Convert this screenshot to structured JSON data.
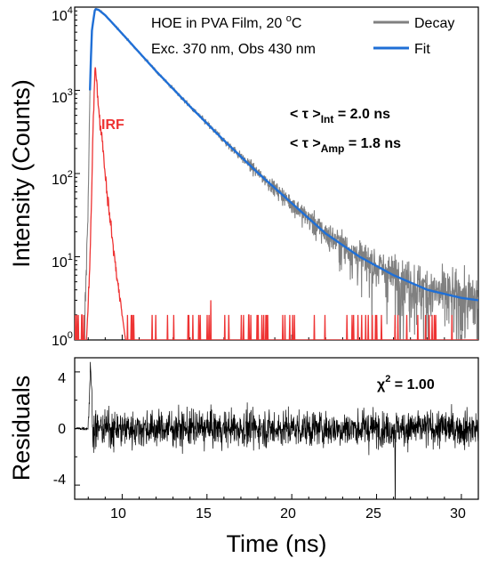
{
  "chart_data": [
    {
      "type": "line",
      "title": "",
      "xlabel": "",
      "ylabel": "Intensity (Counts)",
      "xlim": [
        7.2,
        31
      ],
      "ylim": [
        1,
        10000
      ],
      "yscale": "log",
      "ytick_labels": [
        {
          "base": "10",
          "exp": "0",
          "value": 1
        },
        {
          "base": "10",
          "exp": "1",
          "value": 10
        },
        {
          "base": "10",
          "exp": "2",
          "value": 100
        },
        {
          "base": "10",
          "exp": "3",
          "value": 1000
        },
        {
          "base": "10",
          "exp": "4",
          "value": 10000
        }
      ],
      "grid": false,
      "legend": {
        "placement": "top-right",
        "entries": [
          {
            "label": "Decay",
            "color": "#808080"
          },
          {
            "label": "Fit",
            "color": "#1f6fd6"
          }
        ]
      },
      "annotations": {
        "sample_line1": "HOE in PVA Film, 20 ",
        "sample_degree": "o",
        "sample_unit": "C",
        "sample_line2": "Exc. 370 nm, Obs 430 nm",
        "irf_label": "IRF",
        "tau_int_prefix": "< τ >",
        "tau_int_sub": "Int",
        "tau_int_value": " = 2.0 ns",
        "tau_amp_prefix": "< τ >",
        "tau_amp_sub": "Amp",
        "tau_amp_value": " = 1.8 ns"
      },
      "series": [
        {
          "name": "Decay",
          "color": "#808080",
          "x": [
            7.4,
            7.8,
            8.0,
            8.1,
            8.2,
            8.4,
            8.6,
            9.0,
            10,
            12,
            14,
            16,
            18,
            20,
            22,
            24,
            26,
            28,
            30,
            31
          ],
          "y": [
            1,
            1.5,
            50,
            1000,
            5000,
            9500,
            9300,
            8000,
            4800,
            1700,
            640,
            250,
            102,
            44,
            19,
            10,
            6,
            4,
            3.2,
            3
          ]
        },
        {
          "name": "Fit",
          "color": "#1f6fd6",
          "x": [
            8.1,
            8.2,
            8.4,
            8.6,
            9.0,
            10,
            12,
            14,
            16,
            18,
            20,
            22,
            24,
            26,
            28,
            30,
            31
          ],
          "y": [
            1000,
            5000,
            9500,
            9300,
            8000,
            4800,
            1700,
            640,
            250,
            102,
            44,
            19,
            10,
            6,
            4,
            3.2,
            3
          ]
        },
        {
          "name": "IRF",
          "color": "#ee3333",
          "x": [
            7.9,
            8.1,
            8.3,
            8.4,
            8.5,
            8.7,
            8.8,
            9.0,
            9.2,
            9.4,
            9.6,
            9.8,
            10.0,
            10.2
          ],
          "y": [
            1,
            8,
            500,
            2000,
            1200,
            380,
            300,
            100,
            40,
            18,
            8,
            4,
            2,
            1
          ]
        }
      ]
    },
    {
      "type": "line",
      "title": "",
      "xlabel": "Time (ns)",
      "ylabel": "Residuals",
      "xlim": [
        7.2,
        31
      ],
      "ylim": [
        -5,
        5
      ],
      "xticks": [
        10,
        15,
        20,
        25,
        30
      ],
      "yticks": [
        -4,
        0,
        4
      ],
      "grid": false,
      "annotations": {
        "chi_symbol": "χ",
        "chi_exp": "2",
        "chi_value": " = 1.00"
      },
      "series": [
        {
          "name": "Residuals",
          "color": "#000000",
          "x": [
            7.2,
            8.0,
            8.3,
            9,
            12,
            15,
            20,
            25,
            26.1,
            31
          ],
          "y": [
            0,
            0.5,
            4.5,
            -1.5,
            0.3,
            -0.2,
            0.1,
            -0.1,
            -5,
            0
          ]
        }
      ]
    }
  ]
}
